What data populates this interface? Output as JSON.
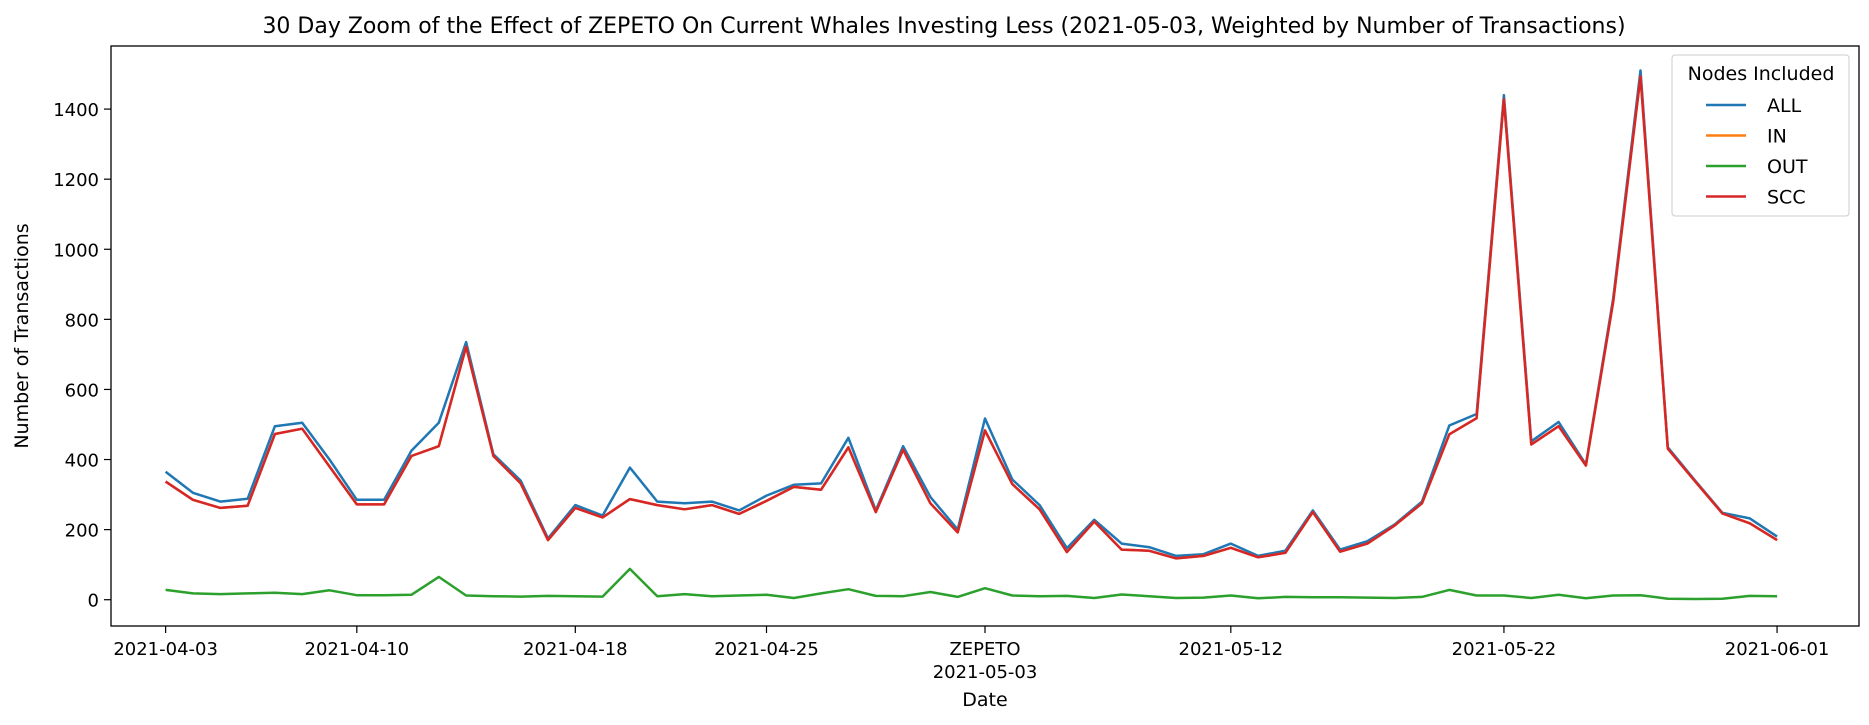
{
  "chart_data": {
    "type": "line",
    "title": "30 Day Zoom of the Effect of ZEPETO On Current Whales Investing Less (2021-05-03, Weighted by Number of Transactions)",
    "xlabel": "Date",
    "ylabel": "Number of Transactions",
    "ylim": [
      -75,
      1580
    ],
    "xlim": [
      "2021-04-01",
      "2021-06-04"
    ],
    "yticks": [
      0,
      200,
      400,
      600,
      800,
      1000,
      1200,
      1400
    ],
    "xticks": [
      {
        "date": "2021-04-03",
        "label": "2021-04-03"
      },
      {
        "date": "2021-04-10",
        "label": "2021-04-10"
      },
      {
        "date": "2021-04-18",
        "label": "2021-04-18"
      },
      {
        "date": "2021-04-25",
        "label": "2021-04-25"
      },
      {
        "date": "2021-05-03",
        "label": "ZEPETO\n2021-05-03"
      },
      {
        "date": "2021-05-12",
        "label": "2021-05-12"
      },
      {
        "date": "2021-05-22",
        "label": "2021-05-22"
      },
      {
        "date": "2021-06-01",
        "label": "2021-06-01"
      }
    ],
    "legend": {
      "title": "Nodes Included",
      "position": "upper right"
    },
    "grid": false,
    "x": [
      "2021-04-03",
      "2021-04-04",
      "2021-04-05",
      "2021-04-06",
      "2021-04-07",
      "2021-04-08",
      "2021-04-09",
      "2021-04-10",
      "2021-04-11",
      "2021-04-12",
      "2021-04-13",
      "2021-04-14",
      "2021-04-15",
      "2021-04-16",
      "2021-04-17",
      "2021-04-18",
      "2021-04-19",
      "2021-04-20",
      "2021-04-21",
      "2021-04-22",
      "2021-04-23",
      "2021-04-24",
      "2021-04-25",
      "2021-04-26",
      "2021-04-27",
      "2021-04-28",
      "2021-04-29",
      "2021-04-30",
      "2021-05-01",
      "2021-05-02",
      "2021-05-03",
      "2021-05-04",
      "2021-05-05",
      "2021-05-06",
      "2021-05-07",
      "2021-05-08",
      "2021-05-09",
      "2021-05-10",
      "2021-05-11",
      "2021-05-12",
      "2021-05-13",
      "2021-05-14",
      "2021-05-15",
      "2021-05-16",
      "2021-05-17",
      "2021-05-18",
      "2021-05-19",
      "2021-05-20",
      "2021-05-21",
      "2021-05-22",
      "2021-05-23",
      "2021-05-24",
      "2021-05-25",
      "2021-05-26",
      "2021-05-27",
      "2021-05-28",
      "2021-05-29",
      "2021-05-30",
      "2021-05-31",
      "2021-06-01"
    ],
    "series": [
      {
        "name": "ALL",
        "color": "#1f77b4",
        "values": [
          365,
          305,
          280,
          288,
          495,
          505,
          400,
          285,
          285,
          425,
          505,
          735,
          415,
          340,
          175,
          270,
          240,
          377,
          280,
          275,
          280,
          255,
          297,
          328,
          332,
          462,
          255,
          438,
          293,
          200,
          517,
          343,
          270,
          147,
          228,
          160,
          150,
          125,
          130,
          160,
          125,
          140,
          255,
          143,
          167,
          215,
          280,
          497,
          530,
          1440,
          452,
          507,
          386,
          860,
          1510,
          435,
          340,
          248,
          232,
          180
        ]
      },
      {
        "name": "IN",
        "color": "#ff7f0e",
        "values": [
          337,
          285,
          262,
          268,
          473,
          488,
          380,
          272,
          272,
          410,
          438,
          722,
          410,
          332,
          170,
          262,
          235,
          287,
          270,
          258,
          270,
          245,
          282,
          322,
          314,
          435,
          250,
          428,
          275,
          192,
          483,
          330,
          258,
          136,
          223,
          143,
          140,
          118,
          125,
          148,
          121,
          134,
          250,
          137,
          160,
          212,
          275,
          472,
          518,
          1428,
          443,
          495,
          383,
          850,
          1493,
          431,
          338,
          246,
          218,
          170
        ]
      },
      {
        "name": "OUT",
        "color": "#2ca02c",
        "values": [
          28,
          18,
          16,
          18,
          20,
          16,
          27,
          13,
          13,
          14,
          65,
          12,
          10,
          9,
          11,
          10,
          9,
          88,
          10,
          16,
          10,
          12,
          14,
          5,
          18,
          30,
          11,
          10,
          22,
          8,
          33,
          12,
          10,
          11,
          5,
          15,
          10,
          5,
          6,
          12,
          4,
          8,
          7,
          7,
          6,
          5,
          8,
          28,
          12,
          12,
          5,
          14,
          4,
          12,
          13,
          3,
          2,
          3,
          11,
          10
        ]
      },
      {
        "name": "SCC",
        "color": "#d62728",
        "values": [
          337,
          285,
          262,
          268,
          473,
          488,
          380,
          272,
          272,
          410,
          438,
          722,
          410,
          332,
          170,
          262,
          235,
          287,
          270,
          258,
          270,
          245,
          282,
          322,
          314,
          435,
          250,
          428,
          275,
          192,
          483,
          330,
          258,
          136,
          223,
          143,
          140,
          118,
          125,
          148,
          121,
          134,
          250,
          137,
          160,
          212,
          275,
          472,
          518,
          1428,
          443,
          495,
          383,
          850,
          1493,
          431,
          338,
          246,
          218,
          170
        ]
      }
    ]
  }
}
